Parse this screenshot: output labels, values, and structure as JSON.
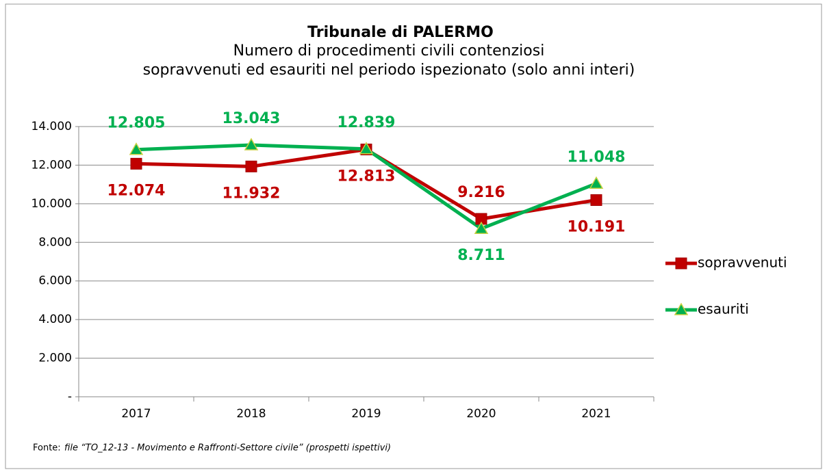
{
  "chart_data": {
    "type": "line",
    "title": "Tribunale di PALERMO",
    "subtitle": [
      "Numero di procedimenti civili contenziosi",
      "sopravvenuti ed esauriti nel periodo ispezionato (solo anni interi)"
    ],
    "categories": [
      "2017",
      "2018",
      "2019",
      "2020",
      "2021"
    ],
    "series": [
      {
        "name": "sopravvenuti",
        "color": "#c00000",
        "marker": "square",
        "values": [
          12074,
          11932,
          12813,
          9216,
          10191
        ],
        "value_labels": [
          "12.074",
          "11.932",
          "12.813",
          "9.216",
          "10.191"
        ]
      },
      {
        "name": "esauriti",
        "color": "#00b050",
        "marker": "triangle",
        "values": [
          12805,
          13043,
          12839,
          8711,
          11048
        ],
        "value_labels": [
          "12.805",
          "13.043",
          "12.839",
          "8.711",
          "11.048"
        ]
      }
    ],
    "ylim": [
      0,
      14000
    ],
    "yticks": [
      {
        "value": 0,
        "label": "-"
      },
      {
        "value": 2000,
        "label": "2.000"
      },
      {
        "value": 4000,
        "label": "4.000"
      },
      {
        "value": 6000,
        "label": "6.000"
      },
      {
        "value": 8000,
        "label": "8.000"
      },
      {
        "value": 10000,
        "label": "10.000"
      },
      {
        "value": 12000,
        "label": "12.000"
      },
      {
        "value": 14000,
        "label": "14.000"
      }
    ],
    "grid": true,
    "legend": "right",
    "source_prefix": "Fonte:",
    "source": "file “TO_12-13 - Movimento e Raffronti-Settore civile” (prospetti ispettivi)"
  }
}
